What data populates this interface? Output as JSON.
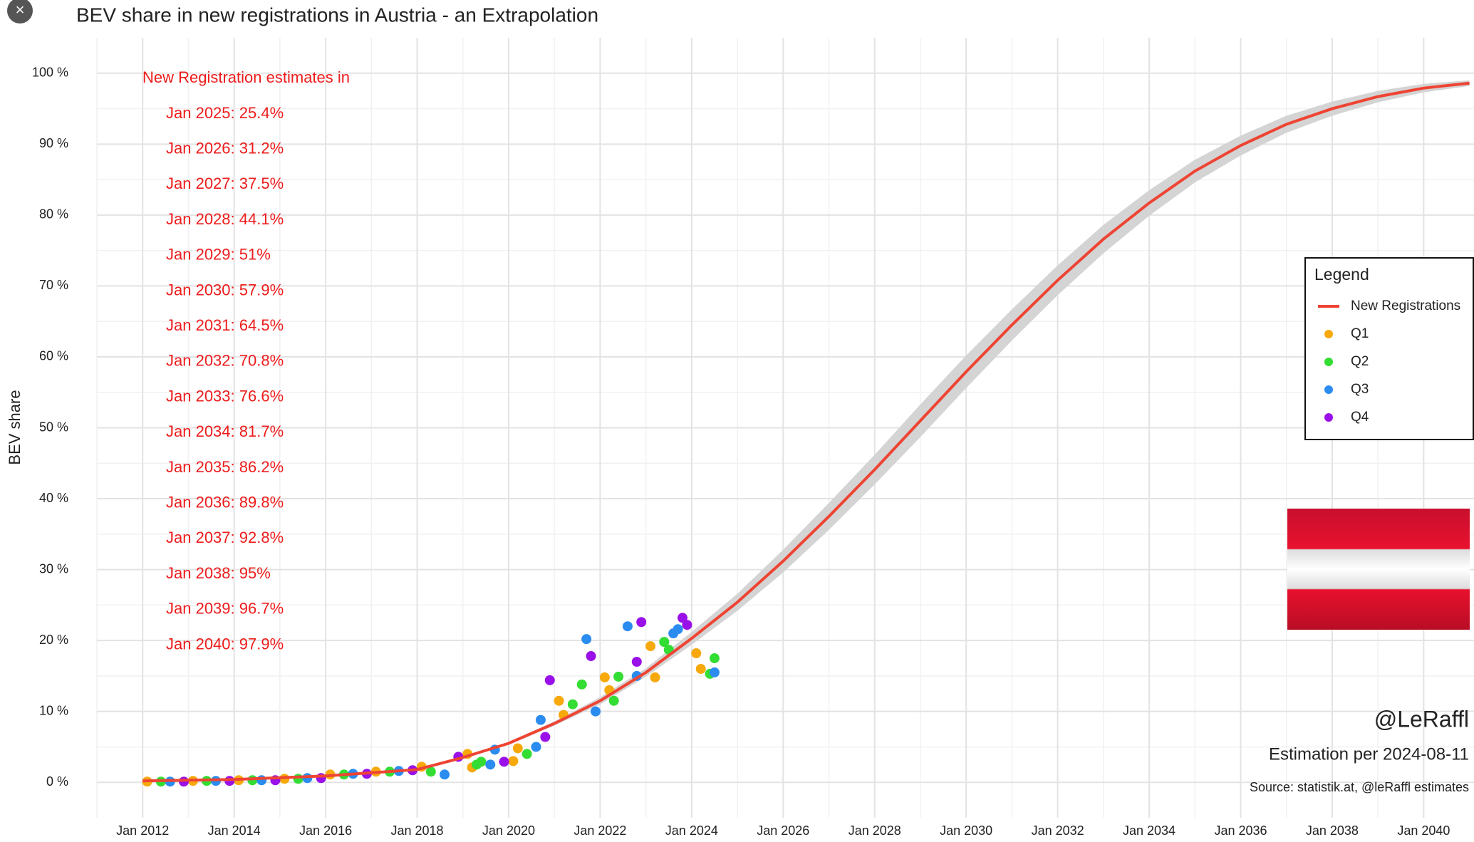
{
  "chart_data": {
    "type": "scatter",
    "title": "BEV share in new registrations in Austria - an Extrapolation",
    "y_label": "BEV share",
    "xlim": [
      2011,
      2041.1
    ],
    "ylim": [
      -5,
      105
    ],
    "xticks": [
      {
        "value": 2012,
        "label": "Jan 2012"
      },
      {
        "value": 2014,
        "label": "Jan 2014"
      },
      {
        "value": 2016,
        "label": "Jan 2016"
      },
      {
        "value": 2018,
        "label": "Jan 2018"
      },
      {
        "value": 2020,
        "label": "Jan 2020"
      },
      {
        "value": 2022,
        "label": "Jan 2022"
      },
      {
        "value": 2024,
        "label": "Jan 2024"
      },
      {
        "value": 2026,
        "label": "Jan 2026"
      },
      {
        "value": 2028,
        "label": "Jan 2028"
      },
      {
        "value": 2030,
        "label": "Jan 2030"
      },
      {
        "value": 2032,
        "label": "Jan 2032"
      },
      {
        "value": 2034,
        "label": "Jan 2034"
      },
      {
        "value": 2036,
        "label": "Jan 2036"
      },
      {
        "value": 2038,
        "label": "Jan 2038"
      },
      {
        "value": 2040,
        "label": "Jan 2040"
      }
    ],
    "yticks": [
      {
        "value": 0,
        "label": "0 %"
      },
      {
        "value": 10,
        "label": "10 %"
      },
      {
        "value": 20,
        "label": "20 %"
      },
      {
        "value": 30,
        "label": "30 %"
      },
      {
        "value": 40,
        "label": "40 %"
      },
      {
        "value": 50,
        "label": "50 %"
      },
      {
        "value": 60,
        "label": "60 %"
      },
      {
        "value": 70,
        "label": "70 %"
      },
      {
        "value": 80,
        "label": "80 %"
      },
      {
        "value": 90,
        "label": "90 %"
      },
      {
        "value": 100,
        "label": "100 %"
      }
    ],
    "grid": true,
    "legend_title": "Legend",
    "legend_position": "right",
    "line": {
      "name": "New Registrations",
      "color": "#ee4433",
      "x": [
        2012,
        2014,
        2016,
        2018,
        2019,
        2020,
        2021,
        2022,
        2023,
        2024,
        2025,
        2026,
        2027,
        2028,
        2029,
        2030,
        2031,
        2032,
        2033,
        2034,
        2035,
        2036,
        2037,
        2038,
        2039,
        2040,
        2041
      ],
      "values": [
        0.2,
        0.4,
        0.9,
        1.8,
        3.5,
        5.5,
        8.3,
        11.5,
        15.5,
        20.3,
        25.4,
        31.2,
        37.5,
        44.1,
        51,
        57.9,
        64.5,
        70.8,
        76.6,
        81.7,
        86.2,
        89.8,
        92.8,
        95,
        96.7,
        97.9,
        98.6
      ],
      "band_color": "#d4d4d4",
      "band_lower": [
        0.2,
        0.4,
        0.9,
        1.8,
        3.4,
        5.3,
        8.0,
        11.0,
        14.9,
        19.4,
        24.2,
        29.6,
        35.6,
        42.0,
        48.7,
        55.6,
        62.3,
        68.7,
        74.6,
        79.9,
        84.6,
        88.4,
        91.6,
        94.0,
        95.9,
        97.3,
        98.2
      ],
      "band_upper": [
        0.2,
        0.4,
        0.9,
        1.8,
        3.6,
        5.7,
        8.6,
        12.0,
        16.1,
        21.2,
        26.6,
        32.8,
        39.4,
        46.2,
        53.3,
        60.2,
        66.7,
        72.9,
        78.6,
        83.5,
        87.8,
        91.2,
        94.0,
        96.0,
        97.5,
        98.5,
        99.0
      ]
    },
    "series": [
      {
        "name": "Q1",
        "color": "#f7a90c",
        "x": [
          2012.1,
          2013.1,
          2014.1,
          2015.1,
          2016.1,
          2017.1,
          2018.1,
          2019.1,
          2019.2,
          2020.1,
          2020.2,
          2021.1,
          2021.2,
          2022.1,
          2022.2,
          2023.1,
          2023.2,
          2024.1,
          2024.2
        ],
        "values": [
          0.1,
          0.2,
          0.3,
          0.5,
          1.1,
          1.5,
          2.2,
          4.0,
          2.1,
          3.0,
          4.8,
          11.5,
          9.5,
          14.8,
          13.0,
          19.2,
          14.8,
          18.2,
          16.0
        ]
      },
      {
        "name": "Q2",
        "color": "#33dd33",
        "x": [
          2012.4,
          2013.4,
          2014.4,
          2015.4,
          2016.4,
          2017.4,
          2018.3,
          2019.3,
          2019.4,
          2020.4,
          2021.4,
          2021.6,
          2022.3,
          2022.4,
          2023.4,
          2023.5,
          2024.4,
          2024.5
        ],
        "values": [
          0.1,
          0.2,
          0.3,
          0.5,
          1.1,
          1.5,
          1.5,
          2.5,
          2.9,
          4.0,
          11.0,
          13.8,
          11.5,
          14.9,
          19.8,
          18.7,
          15.3,
          17.5
        ]
      },
      {
        "name": "Q3",
        "color": "#2b8cf0",
        "x": [
          2012.6,
          2013.6,
          2014.6,
          2015.6,
          2016.6,
          2017.6,
          2018.6,
          2019.6,
          2019.7,
          2020.6,
          2020.7,
          2021.7,
          2021.9,
          2022.6,
          2022.8,
          2023.6,
          2023.7,
          2024.5
        ],
        "values": [
          0.1,
          0.2,
          0.3,
          0.6,
          1.2,
          1.6,
          1.1,
          2.5,
          4.6,
          5.0,
          8.8,
          20.2,
          10.0,
          22.0,
          15.0,
          21.0,
          21.6,
          15.5
        ]
      },
      {
        "name": "Q4",
        "color": "#9a10e8",
        "x": [
          2012.9,
          2013.9,
          2014.9,
          2015.9,
          2016.9,
          2017.9,
          2018.9,
          2019.9,
          2020.8,
          2020.9,
          2021.8,
          2022.8,
          2022.9,
          2023.8,
          2023.9
        ],
        "values": [
          0.1,
          0.2,
          0.3,
          0.6,
          1.2,
          1.7,
          3.6,
          2.9,
          6.4,
          14.4,
          17.8,
          17.0,
          22.6,
          23.2,
          22.2
        ]
      }
    ],
    "annotation_title": "New Registration estimates in",
    "annotations": [
      "Jan 2025: 25.4%",
      "Jan 2026: 31.2%",
      "Jan 2027: 37.5%",
      "Jan 2028: 44.1%",
      "Jan 2029: 51%",
      "Jan 2030: 57.9%",
      "Jan 2031: 64.5%",
      "Jan 2032: 70.8%",
      "Jan 2033: 76.6%",
      "Jan 2034: 81.7%",
      "Jan 2035: 86.2%",
      "Jan 2036: 89.8%",
      "Jan 2037: 92.8%",
      "Jan 2038: 95%",
      "Jan 2039: 96.7%",
      "Jan 2040: 97.9%"
    ],
    "annotation_color": "#ee1c1c",
    "author": "@LeRaffl",
    "estimation": "Estimation per 2024-08-11",
    "source": "Source: statistik.at, @leRaffl estimates"
  }
}
